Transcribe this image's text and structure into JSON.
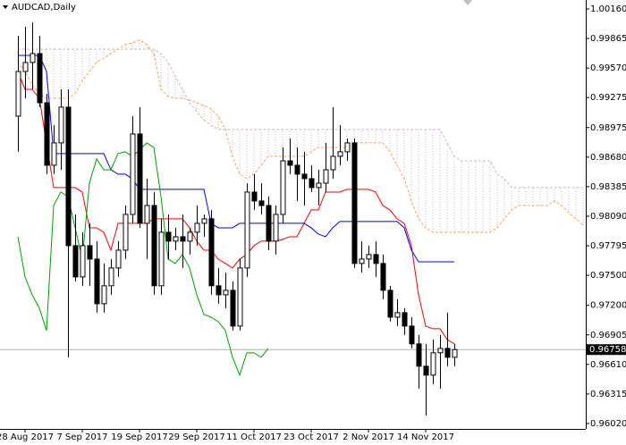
{
  "chart_data": {
    "type": "candlestick",
    "title": "AUDCAD,Daily",
    "categories": [
      null,
      "28 Aug 2017",
      null,
      null,
      null,
      null,
      null,
      null,
      null,
      "7 Sep 2017",
      null,
      null,
      null,
      null,
      null,
      null,
      null,
      "19 Sep 2017",
      null,
      null,
      null,
      null,
      null,
      null,
      null,
      "29 Sep 2017",
      null,
      null,
      null,
      null,
      null,
      null,
      null,
      "11 Oct 2017",
      null,
      null,
      null,
      null,
      null,
      null,
      null,
      "23 Oct 2017",
      null,
      null,
      null,
      null,
      null,
      null,
      null,
      "2 Nov 2017",
      null,
      null,
      null,
      null,
      null,
      null,
      null,
      "14 Nov 2017",
      null,
      null,
      null,
      null,
      null,
      null,
      null,
      null,
      null,
      null,
      null,
      null,
      null,
      null,
      null,
      null,
      null,
      null,
      null,
      null,
      null,
      null
    ],
    "open": [
      0.99089,
      0.99535,
      0.99625,
      0.99714,
      0.99223,
      0.98599,
      0.98822,
      0.99179,
      0.97796,
      0.97484,
      0.97796,
      0.97662,
      0.97216,
      0.97395,
      0.97573,
      0.97751,
      0.98108,
      0.98911,
      0.98019,
      0.98197,
      0.97395,
      0.9793,
      0.97841,
      0.97885,
      0.97841,
      0.9793,
      0.98019,
      0.98064,
      0.97395,
      0.97305,
      0.9735,
      0.96993,
      0.97573,
      0.98331,
      0.98242,
      0.98197,
      0.97841,
      0.98108,
      0.98643,
      0.98599,
      0.9851,
      0.98465,
      0.98376,
      0.9842,
      0.98554,
      0.98688,
      0.98733,
      0.98822,
      0.97618,
      0.97662,
      0.97707,
      0.97618,
      0.9735,
      0.97082,
      0.97127,
      0.96993,
      0.96815,
      0.96592,
      0.96503,
      0.96726,
      0.9677,
      0.96681,
      null,
      null,
      null,
      null,
      null,
      null,
      null,
      null,
      null,
      null,
      null,
      null,
      null,
      null,
      null,
      null,
      null,
      null
    ],
    "high": [
      0.99892,
      0.99981,
      1.00026,
      0.99892,
      0.99312,
      0.99,
      0.99357,
      0.99357,
      0.98108,
      0.9793,
      0.98019,
      0.97841,
      0.97618,
      0.97662,
      0.97841,
      0.98197,
      0.99089,
      0.99179,
      0.98465,
      0.98331,
      0.98064,
      0.98108,
      0.97974,
      0.98108,
      0.97974,
      0.98197,
      0.98108,
      0.98153,
      0.97573,
      0.97528,
      0.97439,
      0.97662,
      0.9842,
      0.9851,
      0.9842,
      0.98287,
      0.98197,
      0.98777,
      0.98866,
      0.98777,
      0.98733,
      0.98599,
      0.98554,
      0.98822,
      0.99179,
      0.99,
      0.98866,
      0.98866,
      0.97841,
      0.97796,
      0.97841,
      0.97707,
      0.97395,
      0.97261,
      0.97172,
      0.97082,
      0.96904,
      0.96815,
      0.96859,
      0.96904,
      0.97127,
      0.96815,
      null,
      null,
      null,
      null,
      null,
      null,
      null,
      null,
      null,
      null,
      null,
      null,
      null,
      null,
      null,
      null,
      null,
      null
    ],
    "low": [
      0.98733,
      0.99268,
      0.99357,
      0.99179,
      0.9851,
      0.9851,
      0.98554,
      0.96681,
      0.97439,
      0.97395,
      0.97395,
      0.97127,
      0.97127,
      0.97305,
      0.97484,
      0.97662,
      0.98019,
      0.97974,
      0.97662,
      0.97305,
      0.97305,
      0.97662,
      0.97751,
      0.97573,
      0.97707,
      0.97796,
      0.97885,
      0.97305,
      0.97216,
      0.97172,
      0.96949,
      0.96949,
      0.97484,
      0.98153,
      0.98108,
      0.97751,
      0.97707,
      0.98019,
      0.9851,
      0.98242,
      0.98197,
      0.98331,
      0.98197,
      0.98331,
      0.98465,
      0.98599,
      0.98643,
      0.97573,
      0.97528,
      0.97573,
      0.97484,
      0.97261,
      0.97038,
      0.96993,
      0.96904,
      0.9677,
      0.96369,
      0.96101,
      0.96413,
      0.96369,
      0.96592,
      0.96592,
      null,
      null,
      null,
      null,
      null,
      null,
      null,
      null,
      null,
      null,
      null,
      null,
      null,
      null,
      null,
      null,
      null,
      null
    ],
    "close": [
      0.99535,
      0.99625,
      0.99714,
      0.99223,
      0.98599,
      0.98822,
      0.99179,
      0.97796,
      0.97484,
      0.97796,
      0.97662,
      0.97216,
      0.97395,
      0.97573,
      0.97751,
      0.98108,
      0.98911,
      0.98019,
      0.98197,
      0.97395,
      0.9793,
      0.97841,
      0.97885,
      0.97841,
      0.9793,
      0.98019,
      0.98064,
      0.97395,
      0.97305,
      0.9735,
      0.96993,
      0.97573,
      0.98331,
      0.98242,
      0.98197,
      0.97841,
      0.98108,
      0.98643,
      0.98599,
      0.9851,
      0.98465,
      0.98376,
      0.9842,
      0.98554,
      0.98688,
      0.98733,
      0.98822,
      0.97618,
      0.97662,
      0.97707,
      0.97618,
      0.9735,
      0.97082,
      0.97127,
      0.96993,
      0.96815,
      0.96592,
      0.96503,
      0.96726,
      0.9677,
      0.96681,
      0.96758,
      null,
      null,
      null,
      null,
      null,
      null,
      null,
      null,
      null,
      null,
      null,
      null,
      null,
      null,
      null,
      null,
      null,
      null
    ],
    "up_color": "#ffffff",
    "down_color": "#000000",
    "series": [
      {
        "color": "#ff0000",
        "style": "solid",
        "values": [
          0.99535,
          0.99357,
          0.99357,
          0.99268,
          0.98822,
          0.98376,
          0.98376,
          0.98376,
          0.98376,
          0.98331,
          0.97974,
          0.97974,
          0.9793,
          0.97751,
          0.98019,
          0.98019,
          0.98019,
          0.98019,
          0.98019,
          0.98064,
          0.98064,
          0.98064,
          0.98064,
          0.98064,
          0.97974,
          0.97841,
          0.97751,
          0.97751,
          0.97662,
          0.97618,
          0.97573,
          0.97662,
          0.97707,
          0.97796,
          0.97841,
          0.97841,
          0.97841,
          0.97858,
          0.97885,
          0.97885,
          0.98019,
          0.98153,
          0.98153,
          0.98331,
          0.98331,
          0.98331,
          0.98358,
          0.98358,
          0.98358,
          0.98358,
          0.98331,
          0.98197,
          0.98153,
          0.98064,
          0.98019,
          0.97796,
          0.97305,
          0.96993,
          0.96966,
          0.96966,
          0.96859,
          0.96815,
          null,
          null,
          null,
          null,
          null,
          null,
          null,
          null,
          null,
          null,
          null,
          null,
          null,
          null,
          null,
          null,
          null,
          null
        ]
      },
      {
        "color": "#0000ff",
        "style": "solid",
        "values": [
          0.99696,
          0.99696,
          0.99696,
          0.99696,
          0.99535,
          0.98715,
          0.98715,
          0.98715,
          0.98715,
          0.98715,
          0.98715,
          0.98715,
          0.98715,
          0.98554,
          0.9851,
          0.9851,
          0.98465,
          0.98358,
          0.98358,
          0.98358,
          0.98358,
          0.98358,
          0.98358,
          0.98358,
          0.98358,
          0.98358,
          0.98358,
          0.98019,
          0.97974,
          0.97974,
          0.97974,
          0.98019,
          0.98019,
          0.98019,
          0.98019,
          0.98019,
          0.98019,
          0.98019,
          0.98019,
          0.98019,
          0.98019,
          0.97974,
          0.97912,
          0.97885,
          0.97974,
          0.98037,
          0.98037,
          0.98037,
          0.98037,
          0.98037,
          0.98037,
          0.98037,
          0.98037,
          0.98037,
          0.97974,
          0.97751,
          0.97635,
          0.97635,
          0.97635,
          0.97635,
          0.97635,
          0.97635,
          null,
          null,
          null,
          null,
          null,
          null,
          null,
          null,
          null,
          null,
          null,
          null,
          null,
          null,
          null,
          null,
          null,
          null
        ]
      },
      {
        "color": "#00a000",
        "style": "solid",
        "values": [
          0.97885,
          0.97484,
          0.97305,
          0.97172,
          0.96949,
          0.98197,
          0.98331,
          0.98287,
          0.97974,
          0.97662,
          0.9842,
          0.98661,
          0.98554,
          0.98554,
          0.98715,
          0.98733,
          0.98688,
          0.9875,
          0.98822,
          0.98777,
          0.98287,
          0.97662,
          0.97618,
          0.97707,
          0.97573,
          0.97305,
          0.97109,
          0.97082,
          0.97038,
          0.96949,
          0.96681,
          0.96503,
          0.96726,
          0.96726,
          0.96681,
          0.9677,
          null,
          null,
          null,
          null,
          null,
          null,
          null,
          null,
          null,
          null,
          null,
          null,
          null,
          null,
          null,
          null,
          null,
          null,
          null,
          null,
          null,
          null,
          null,
          null,
          null,
          null,
          null,
          null,
          null,
          null,
          null,
          null,
          null,
          null,
          null,
          null,
          null,
          null,
          null,
          null,
          null,
          null,
          null,
          null
        ]
      },
      {
        "color": "#f4a460",
        "style": "dashed",
        "values": [
          0.99625,
          0.99535,
          0.99402,
          0.99312,
          0.99268,
          0.99268,
          0.99268,
          0.99268,
          0.99312,
          0.99446,
          0.99535,
          0.99625,
          0.99669,
          0.99714,
          0.99758,
          0.99803,
          0.99821,
          0.99848,
          0.99803,
          0.99714,
          0.99357,
          0.99286,
          0.99268,
          0.99268,
          0.9925,
          0.99223,
          0.99196,
          0.99161,
          0.99089,
          0.98956,
          0.98688,
          0.9851,
          0.98465,
          0.9851,
          0.98599,
          0.98688,
          0.98688,
          0.98688,
          0.98688,
          0.98688,
          0.98688,
          0.98733,
          0.98777,
          0.98777,
          0.98777,
          0.98777,
          0.98777,
          0.98822,
          0.98822,
          0.98822,
          0.98822,
          0.98822,
          0.98733,
          0.98599,
          0.98465,
          0.98242,
          0.98064,
          0.97974,
          0.9793,
          0.9793,
          0.9793,
          0.9793,
          0.9793,
          0.9793,
          0.9793,
          0.9793,
          0.9793,
          0.97974,
          0.98064,
          0.98153,
          0.98197,
          0.98197,
          0.98197,
          0.98197,
          0.98197,
          0.98242,
          0.98197,
          0.98126,
          0.98064,
          0.98001
        ]
      },
      {
        "color": "#c8b4c8",
        "style": "dashed",
        "values": [
          0.99758,
          0.99758,
          0.99758,
          0.99758,
          0.99758,
          0.99758,
          0.99758,
          0.99758,
          0.99758,
          0.99758,
          0.99758,
          0.99758,
          0.99758,
          0.99758,
          0.99758,
          0.99758,
          0.99758,
          0.99758,
          0.99758,
          0.99758,
          0.99714,
          0.99625,
          0.99491,
          0.99357,
          0.99223,
          0.99134,
          0.99045,
          0.99,
          0.98956,
          0.98956,
          0.98956,
          0.98956,
          0.98956,
          0.98956,
          0.98956,
          0.98956,
          0.98956,
          0.98956,
          0.98956,
          0.98956,
          0.98956,
          0.98956,
          0.98956,
          0.98956,
          0.98956,
          0.98956,
          0.98956,
          0.98956,
          0.98956,
          0.98956,
          0.98956,
          0.98956,
          0.98956,
          0.98956,
          0.98956,
          0.98956,
          0.98956,
          0.98956,
          0.98956,
          0.98956,
          0.98822,
          0.98688,
          0.98643,
          0.98643,
          0.98643,
          0.98643,
          0.98643,
          0.9851,
          0.98465,
          0.98376,
          0.98376,
          0.98376,
          0.98376,
          0.98376,
          0.98376,
          0.98376,
          0.98376,
          0.98376,
          0.98376,
          0.98376
        ]
      }
    ],
    "cloud": [
      3,
      4
    ],
    "last_price": 0.96758,
    "ylim": [
      0.95966,
      1.00249
    ],
    "yticks": [
      {
        "value": 1.0016,
        "label": "1.00160"
      },
      0.99865,
      {
        "value": 0.9957,
        "label": "0.99570"
      },
      0.99275,
      0.98975,
      {
        "value": 0.9868,
        "label": "0.98680"
      },
      0.98385,
      {
        "value": 0.9809,
        "label": "0.98090"
      },
      0.97795,
      {
        "value": 0.975,
        "label": "0.97500"
      },
      {
        "value": 0.972,
        "label": "0.97200"
      },
      0.96905,
      {
        "value": 0.9661,
        "label": "0.96610"
      },
      0.96315,
      {
        "value": 0.9602,
        "label": "0.96020"
      }
    ],
    "grid": false
  }
}
